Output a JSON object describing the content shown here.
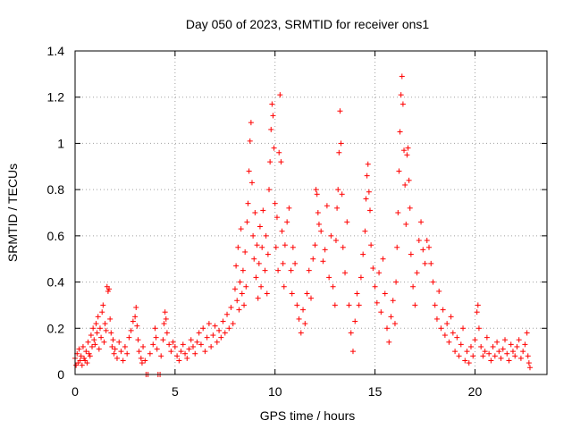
{
  "chart_data": {
    "type": "scatter",
    "title": "Day 050 of 2023, SRMTID for receiver ons1",
    "xlabel": "GPS time / hours",
    "ylabel": "SRMTID / TECUs",
    "xlim": [
      0,
      23.6
    ],
    "ylim": [
      0,
      1.4
    ],
    "xticks": [
      0,
      5,
      10,
      15,
      20
    ],
    "yticks": [
      0,
      0.2,
      0.4,
      0.6,
      0.8,
      1,
      1.2,
      1.4
    ],
    "xtick_labels": [
      "0",
      "5",
      "10",
      "15",
      "20"
    ],
    "ytick_labels": [
      "0",
      "0.2",
      "0.4",
      "0.6",
      "0.8",
      "1",
      "1.2",
      "1.4"
    ],
    "grid": true,
    "marker": "+",
    "color": "#ff0000",
    "series": [
      {
        "name": "SRMTID",
        "points": [
          [
            0.0,
            0.07
          ],
          [
            0.05,
            0.04
          ],
          [
            0.1,
            0.09
          ],
          [
            0.15,
            0.05
          ],
          [
            0.2,
            0.11
          ],
          [
            0.25,
            0.06
          ],
          [
            0.3,
            0.08
          ],
          [
            0.35,
            0.04
          ],
          [
            0.4,
            0.12
          ],
          [
            0.45,
            0.07
          ],
          [
            0.5,
            0.06
          ],
          [
            0.55,
            0.1
          ],
          [
            0.6,
            0.05
          ],
          [
            0.65,
            0.14
          ],
          [
            0.7,
            0.09
          ],
          [
            0.75,
            0.08
          ],
          [
            0.8,
            0.17
          ],
          [
            0.85,
            0.12
          ],
          [
            0.9,
            0.2
          ],
          [
            0.95,
            0.15
          ],
          [
            1.0,
            0.13
          ],
          [
            1.05,
            0.22
          ],
          [
            1.1,
            0.18
          ],
          [
            1.15,
            0.25
          ],
          [
            1.2,
            0.11
          ],
          [
            1.25,
            0.2
          ],
          [
            1.3,
            0.16
          ],
          [
            1.35,
            0.27
          ],
          [
            1.4,
            0.3
          ],
          [
            1.45,
            0.14
          ],
          [
            1.5,
            0.22
          ],
          [
            1.55,
            0.19
          ],
          [
            1.6,
            0.38
          ],
          [
            1.65,
            0.36
          ],
          [
            1.7,
            0.37
          ],
          [
            1.75,
            0.24
          ],
          [
            1.8,
            0.18
          ],
          [
            1.85,
            0.12
          ],
          [
            1.9,
            0.15
          ],
          [
            1.95,
            0.09
          ],
          [
            2.0,
            0.11
          ],
          [
            2.1,
            0.07
          ],
          [
            2.2,
            0.14
          ],
          [
            2.3,
            0.1
          ],
          [
            2.4,
            0.06
          ],
          [
            2.5,
            0.12
          ],
          [
            2.6,
            0.09
          ],
          [
            2.7,
            0.16
          ],
          [
            2.8,
            0.19
          ],
          [
            2.9,
            0.23
          ],
          [
            3.0,
            0.25
          ],
          [
            3.05,
            0.29
          ],
          [
            3.1,
            0.21
          ],
          [
            3.15,
            0.15
          ],
          [
            3.2,
            0.1
          ],
          [
            3.3,
            0.07
          ],
          [
            3.35,
            0.05
          ],
          [
            3.4,
            0.12
          ],
          [
            3.5,
            0.06
          ],
          [
            3.55,
            0.0
          ],
          [
            3.65,
            0.0
          ],
          [
            3.75,
            0.09
          ],
          [
            3.9,
            0.13
          ],
          [
            4.0,
            0.2
          ],
          [
            4.05,
            0.16
          ],
          [
            4.1,
            0.11
          ],
          [
            4.15,
            0.0
          ],
          [
            4.25,
            0.0
          ],
          [
            4.3,
            0.08
          ],
          [
            4.4,
            0.15
          ],
          [
            4.45,
            0.22
          ],
          [
            4.5,
            0.27
          ],
          [
            4.55,
            0.24
          ],
          [
            4.6,
            0.18
          ],
          [
            4.7,
            0.13
          ],
          [
            4.8,
            0.1
          ],
          [
            4.9,
            0.14
          ],
          [
            5.0,
            0.12
          ],
          [
            5.1,
            0.08
          ],
          [
            5.2,
            0.06
          ],
          [
            5.3,
            0.1
          ],
          [
            5.4,
            0.13
          ],
          [
            5.5,
            0.09
          ],
          [
            5.6,
            0.07
          ],
          [
            5.7,
            0.11
          ],
          [
            5.8,
            0.15
          ],
          [
            5.9,
            0.12
          ],
          [
            6.0,
            0.09
          ],
          [
            6.1,
            0.14
          ],
          [
            6.2,
            0.18
          ],
          [
            6.3,
            0.13
          ],
          [
            6.4,
            0.2
          ],
          [
            6.5,
            0.1
          ],
          [
            6.6,
            0.16
          ],
          [
            6.7,
            0.22
          ],
          [
            6.8,
            0.12
          ],
          [
            6.9,
            0.17
          ],
          [
            7.0,
            0.21
          ],
          [
            7.1,
            0.14
          ],
          [
            7.2,
            0.19
          ],
          [
            7.3,
            0.16
          ],
          [
            7.4,
            0.23
          ],
          [
            7.5,
            0.18
          ],
          [
            7.6,
            0.26
          ],
          [
            7.7,
            0.2
          ],
          [
            7.8,
            0.29
          ],
          [
            7.9,
            0.22
          ],
          [
            8.0,
            0.37
          ],
          [
            8.05,
            0.47
          ],
          [
            8.1,
            0.32
          ],
          [
            8.15,
            0.55
          ],
          [
            8.2,
            0.28
          ],
          [
            8.25,
            0.4
          ],
          [
            8.3,
            0.63
          ],
          [
            8.35,
            0.35
          ],
          [
            8.4,
            0.45
          ],
          [
            8.45,
            0.3
          ],
          [
            8.5,
            0.53
          ],
          [
            8.55,
            0.38
          ],
          [
            8.6,
            0.66
          ],
          [
            8.65,
            0.74
          ],
          [
            8.7,
            0.88
          ],
          [
            8.75,
            1.01
          ],
          [
            8.8,
            1.09
          ],
          [
            8.85,
            0.83
          ],
          [
            8.9,
            0.6
          ],
          [
            8.95,
            0.5
          ],
          [
            9.0,
            0.7
          ],
          [
            9.05,
            0.42
          ],
          [
            9.1,
            0.56
          ],
          [
            9.15,
            0.33
          ],
          [
            9.2,
            0.48
          ],
          [
            9.25,
            0.64
          ],
          [
            9.3,
            0.38
          ],
          [
            9.35,
            0.55
          ],
          [
            9.4,
            0.71
          ],
          [
            9.5,
            0.45
          ],
          [
            9.55,
            0.6
          ],
          [
            9.6,
            0.35
          ],
          [
            9.65,
            0.52
          ],
          [
            9.7,
            0.8
          ],
          [
            9.75,
            0.92
          ],
          [
            9.8,
            1.06
          ],
          [
            9.85,
            1.17
          ],
          [
            9.9,
            1.12
          ],
          [
            9.95,
            0.98
          ],
          [
            10.0,
            0.74
          ],
          [
            10.05,
            0.55
          ],
          [
            10.1,
            0.68
          ],
          [
            10.15,
            0.45
          ],
          [
            10.2,
            0.96
          ],
          [
            10.25,
            1.21
          ],
          [
            10.3,
            0.92
          ],
          [
            10.35,
            0.62
          ],
          [
            10.4,
            0.48
          ],
          [
            10.45,
            0.38
          ],
          [
            10.5,
            0.56
          ],
          [
            10.6,
            0.66
          ],
          [
            10.7,
            0.72
          ],
          [
            10.8,
            0.45
          ],
          [
            10.85,
            0.35
          ],
          [
            10.9,
            0.55
          ],
          [
            11.0,
            0.48
          ],
          [
            11.1,
            0.3
          ],
          [
            11.2,
            0.24
          ],
          [
            11.3,
            0.18
          ],
          [
            11.4,
            0.28
          ],
          [
            11.5,
            0.22
          ],
          [
            11.6,
            0.35
          ],
          [
            11.7,
            0.45
          ],
          [
            11.8,
            0.33
          ],
          [
            11.9,
            0.5
          ],
          [
            12.0,
            0.56
          ],
          [
            12.05,
            0.8
          ],
          [
            12.1,
            0.78
          ],
          [
            12.15,
            0.7
          ],
          [
            12.2,
            0.65
          ],
          [
            12.3,
            0.62
          ],
          [
            12.4,
            0.49
          ],
          [
            12.5,
            0.54
          ],
          [
            12.6,
            0.73
          ],
          [
            12.7,
            0.42
          ],
          [
            12.8,
            0.6
          ],
          [
            12.9,
            0.38
          ],
          [
            13.0,
            0.3
          ],
          [
            13.05,
            0.58
          ],
          [
            13.1,
            0.72
          ],
          [
            13.15,
            0.8
          ],
          [
            13.2,
            0.96
          ],
          [
            13.25,
            1.14
          ],
          [
            13.3,
            1.0
          ],
          [
            13.35,
            0.78
          ],
          [
            13.4,
            0.55
          ],
          [
            13.5,
            0.44
          ],
          [
            13.6,
            0.66
          ],
          [
            13.7,
            0.3
          ],
          [
            13.8,
            0.18
          ],
          [
            13.9,
            0.1
          ],
          [
            14.0,
            0.23
          ],
          [
            14.1,
            0.35
          ],
          [
            14.2,
            0.3
          ],
          [
            14.3,
            0.42
          ],
          [
            14.4,
            0.52
          ],
          [
            14.5,
            0.62
          ],
          [
            14.55,
            0.76
          ],
          [
            14.6,
            0.86
          ],
          [
            14.65,
            0.91
          ],
          [
            14.7,
            0.79
          ],
          [
            14.75,
            0.71
          ],
          [
            14.8,
            0.56
          ],
          [
            14.9,
            0.46
          ],
          [
            15.0,
            0.38
          ],
          [
            15.1,
            0.31
          ],
          [
            15.2,
            0.44
          ],
          [
            15.3,
            0.27
          ],
          [
            15.4,
            0.5
          ],
          [
            15.5,
            0.35
          ],
          [
            15.6,
            0.2
          ],
          [
            15.7,
            0.14
          ],
          [
            15.8,
            0.25
          ],
          [
            15.9,
            0.32
          ],
          [
            16.0,
            0.22
          ],
          [
            16.05,
            0.4
          ],
          [
            16.1,
            0.55
          ],
          [
            16.15,
            0.7
          ],
          [
            16.2,
            0.88
          ],
          [
            16.25,
            1.05
          ],
          [
            16.3,
            1.21
          ],
          [
            16.35,
            1.29
          ],
          [
            16.4,
            1.17
          ],
          [
            16.45,
            0.97
          ],
          [
            16.5,
            0.82
          ],
          [
            16.55,
            0.65
          ],
          [
            16.6,
            0.95
          ],
          [
            16.65,
            0.98
          ],
          [
            16.7,
            0.84
          ],
          [
            16.75,
            0.72
          ],
          [
            16.8,
            0.52
          ],
          [
            16.9,
            0.38
          ],
          [
            17.0,
            0.3
          ],
          [
            17.1,
            0.44
          ],
          [
            17.2,
            0.58
          ],
          [
            17.3,
            0.66
          ],
          [
            17.4,
            0.54
          ],
          [
            17.5,
            0.48
          ],
          [
            17.6,
            0.58
          ],
          [
            17.7,
            0.55
          ],
          [
            17.8,
            0.48
          ],
          [
            17.9,
            0.4
          ],
          [
            18.0,
            0.3
          ],
          [
            18.1,
            0.24
          ],
          [
            18.2,
            0.36
          ],
          [
            18.3,
            0.2
          ],
          [
            18.4,
            0.28
          ],
          [
            18.5,
            0.17
          ],
          [
            18.6,
            0.22
          ],
          [
            18.7,
            0.14
          ],
          [
            18.8,
            0.25
          ],
          [
            18.9,
            0.18
          ],
          [
            19.0,
            0.1
          ],
          [
            19.1,
            0.16
          ],
          [
            19.2,
            0.08
          ],
          [
            19.3,
            0.13
          ],
          [
            19.4,
            0.2
          ],
          [
            19.5,
            0.06
          ],
          [
            19.6,
            0.1
          ],
          [
            19.7,
            0.05
          ],
          [
            19.8,
            0.12
          ],
          [
            19.9,
            0.08
          ],
          [
            20.0,
            0.15
          ],
          [
            20.1,
            0.27
          ],
          [
            20.15,
            0.3
          ],
          [
            20.2,
            0.2
          ],
          [
            20.3,
            0.12
          ],
          [
            20.4,
            0.08
          ],
          [
            20.5,
            0.1
          ],
          [
            20.6,
            0.16
          ],
          [
            20.7,
            0.09
          ],
          [
            20.8,
            0.06
          ],
          [
            20.9,
            0.12
          ],
          [
            21.0,
            0.08
          ],
          [
            21.1,
            0.14
          ],
          [
            21.2,
            0.1
          ],
          [
            21.3,
            0.07
          ],
          [
            21.4,
            0.11
          ],
          [
            21.5,
            0.15
          ],
          [
            21.6,
            0.09
          ],
          [
            21.7,
            0.06
          ],
          [
            21.8,
            0.13
          ],
          [
            21.9,
            0.1
          ],
          [
            22.0,
            0.08
          ],
          [
            22.1,
            0.12
          ],
          [
            22.2,
            0.15
          ],
          [
            22.3,
            0.07
          ],
          [
            22.4,
            0.1
          ],
          [
            22.5,
            0.13
          ],
          [
            22.6,
            0.18
          ],
          [
            22.65,
            0.08
          ],
          [
            22.7,
            0.05
          ],
          [
            22.75,
            0.03
          ]
        ]
      }
    ]
  }
}
